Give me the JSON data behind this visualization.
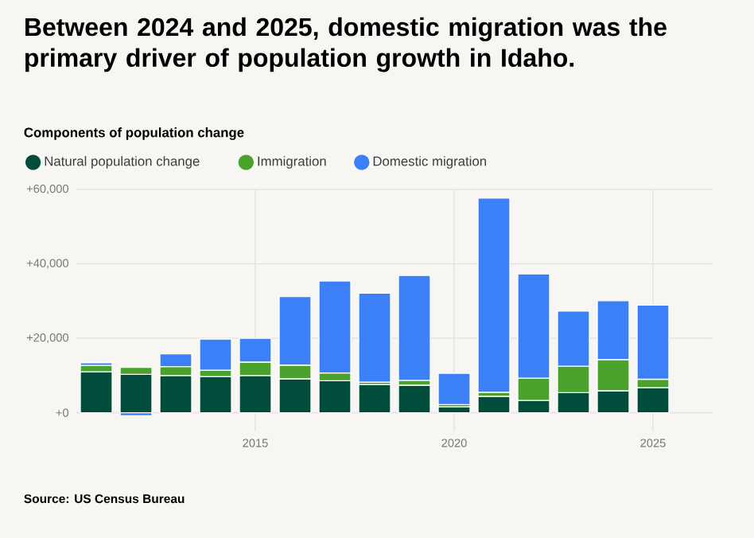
{
  "chart_data": {
    "type": "bar",
    "stacked": true,
    "title": "Between 2024 and 2025, domestic migration was the primary driver of population growth in Idaho.",
    "subtitle": "Components of population change",
    "x": [
      2011,
      2012,
      2013,
      2014,
      2015,
      2016,
      2017,
      2018,
      2019,
      2020,
      2021,
      2022,
      2023,
      2024,
      2025
    ],
    "series": [
      {
        "name": "Natural population change",
        "color": "#014c3a",
        "values": [
          11000,
          10300,
          10000,
          9700,
          10000,
          9100,
          8600,
          7600,
          7400,
          1600,
          4400,
          3300,
          5400,
          5900,
          6700
        ]
      },
      {
        "name": "Immigration",
        "color": "#4aa12c",
        "values": [
          1700,
          1900,
          2400,
          1700,
          3600,
          3700,
          2100,
          600,
          1300,
          600,
          1100,
          6000,
          7100,
          8400,
          2300
        ]
      },
      {
        "name": "Domestic migration",
        "color": "#3b80f7",
        "values": [
          700,
          -800,
          3400,
          8400,
          6400,
          18400,
          24700,
          23900,
          28200,
          8400,
          52200,
          28000,
          14800,
          15800,
          19900
        ]
      }
    ],
    "xlim": [
      2010.5,
      2026.5
    ],
    "xticks": [
      2015,
      2020,
      2025
    ],
    "ylim": [
      -5000,
      60000
    ],
    "yticks": [
      {
        "value": 0,
        "label": "+0"
      },
      {
        "value": 20000,
        "label": "+20,000"
      },
      {
        "value": 40000,
        "label": "+40,000"
      },
      {
        "value": 60000,
        "label": "+60,000"
      }
    ],
    "grid": true,
    "legend": "top left",
    "annotations": [
      "Source: US Census Bureau"
    ]
  }
}
